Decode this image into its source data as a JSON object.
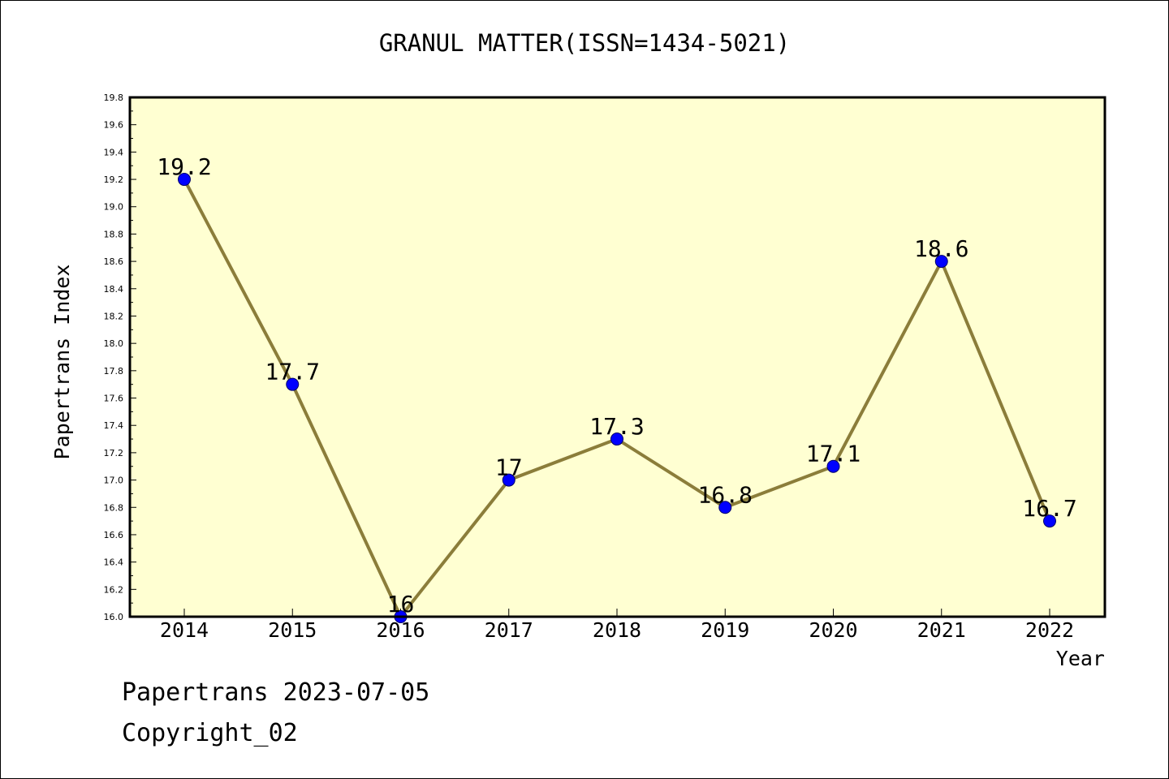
{
  "title": "GRANUL MATTER(ISSN=1434-5021)",
  "footer": {
    "date_line": "Papertrans 2023-07-05",
    "copyright_line": "Copyright_02"
  },
  "colors": {
    "plot_background": "#ffffd2",
    "line": "#8b7d3a",
    "marker": "#0000ff"
  },
  "chart_data": {
    "type": "line",
    "xlabel": "Year",
    "ylabel": "Papertrans Index",
    "ylim": [
      16.0,
      19.8
    ],
    "yticks": [
      "16.0",
      "16.2",
      "16.4",
      "16.6",
      "16.8",
      "17.0",
      "17.2",
      "17.4",
      "17.6",
      "17.8",
      "18.0",
      "18.2",
      "18.4",
      "18.6",
      "18.8",
      "19.0",
      "19.2",
      "19.4",
      "19.6",
      "19.8"
    ],
    "categories": [
      "2014",
      "2015",
      "2016",
      "2017",
      "2018",
      "2019",
      "2020",
      "2021",
      "2022"
    ],
    "values": [
      19.2,
      17.7,
      16.0,
      17.0,
      17.3,
      16.8,
      17.1,
      18.6,
      16.7
    ],
    "data_labels": [
      "19.2",
      "17.7",
      "16",
      "17",
      "17.3",
      "16.8",
      "17.1",
      "18.6",
      "16.7"
    ],
    "grid": false
  }
}
